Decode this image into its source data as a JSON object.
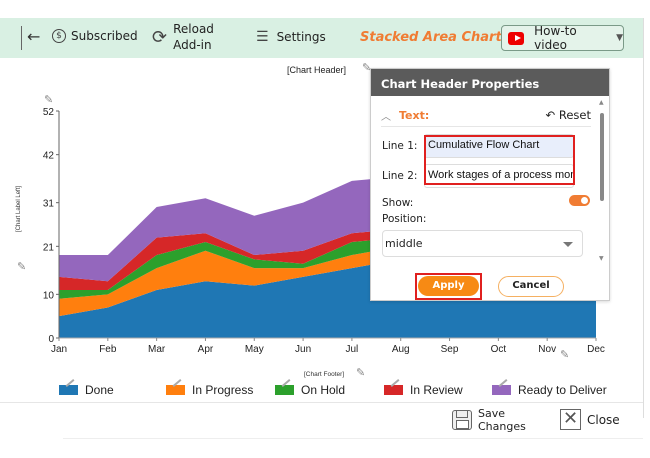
{
  "toolbar": {
    "back_label": "←",
    "subscribed_label": "Subscribed",
    "reload_line1": "Reload",
    "reload_line2": "Add-in",
    "settings_label": "Settings",
    "chart_type_label": "Stacked Area Chart",
    "howto_label": "How-to video"
  },
  "chart_placeholders": {
    "header": "[Chart Header]",
    "left_label": "[Chart Label Left]",
    "footer": "[Chart Footer]"
  },
  "popup": {
    "title": "Chart Header Properties",
    "section_label": "Text:",
    "reset_label": "Reset",
    "line1_label": "Line 1:",
    "line1_value": "Cumulative Flow Chart",
    "line2_label": "Line 2:",
    "line2_value": "Work stages of a process mon",
    "show_label": "Show:",
    "show_on": true,
    "position_label": "Position:",
    "position_value": "middle",
    "apply_label": "Apply",
    "cancel_label": "Cancel"
  },
  "footer": {
    "save_line1": "Save",
    "save_line2": "Changes",
    "close_label": "Close"
  },
  "chart_data": {
    "type": "area",
    "stacked": true,
    "categories": [
      "Jan",
      "Feb",
      "Mar",
      "Apr",
      "May",
      "Jun",
      "Jul",
      "Aug",
      "Sep",
      "Oct",
      "Nov",
      "Dec"
    ],
    "series": [
      {
        "name": "Done",
        "color": "#1f77b4",
        "values": [
          5,
          7,
          11,
          13,
          12,
          14,
          16,
          18,
          20,
          22,
          24,
          26
        ]
      },
      {
        "name": "In Progress",
        "color": "#ff7f0e",
        "values": [
          4,
          3,
          5,
          7,
          4,
          2,
          3,
          3,
          3,
          3,
          3,
          3
        ]
      },
      {
        "name": "On Hold",
        "color": "#2ca02c",
        "values": [
          2,
          1,
          3,
          2,
          2,
          1,
          3,
          2,
          2,
          2,
          2,
          2
        ]
      },
      {
        "name": "In Review",
        "color": "#d62728",
        "values": [
          3,
          2,
          4,
          2,
          1,
          3,
          2,
          2,
          2,
          2,
          2,
          2
        ]
      },
      {
        "name": "Ready to Deliver",
        "color": "#9467bd",
        "values": [
          5,
          6,
          7,
          8,
          9,
          11,
          12,
          12,
          12,
          12,
          12,
          12
        ]
      }
    ],
    "yticks": [
      0,
      10,
      21,
      31,
      42,
      52
    ],
    "ylim": [
      0,
      52
    ],
    "title": "[Chart Header]",
    "xlabel": "[Chart Footer]",
    "ylabel": "[Chart Label Left]",
    "legend_position": "bottom"
  }
}
